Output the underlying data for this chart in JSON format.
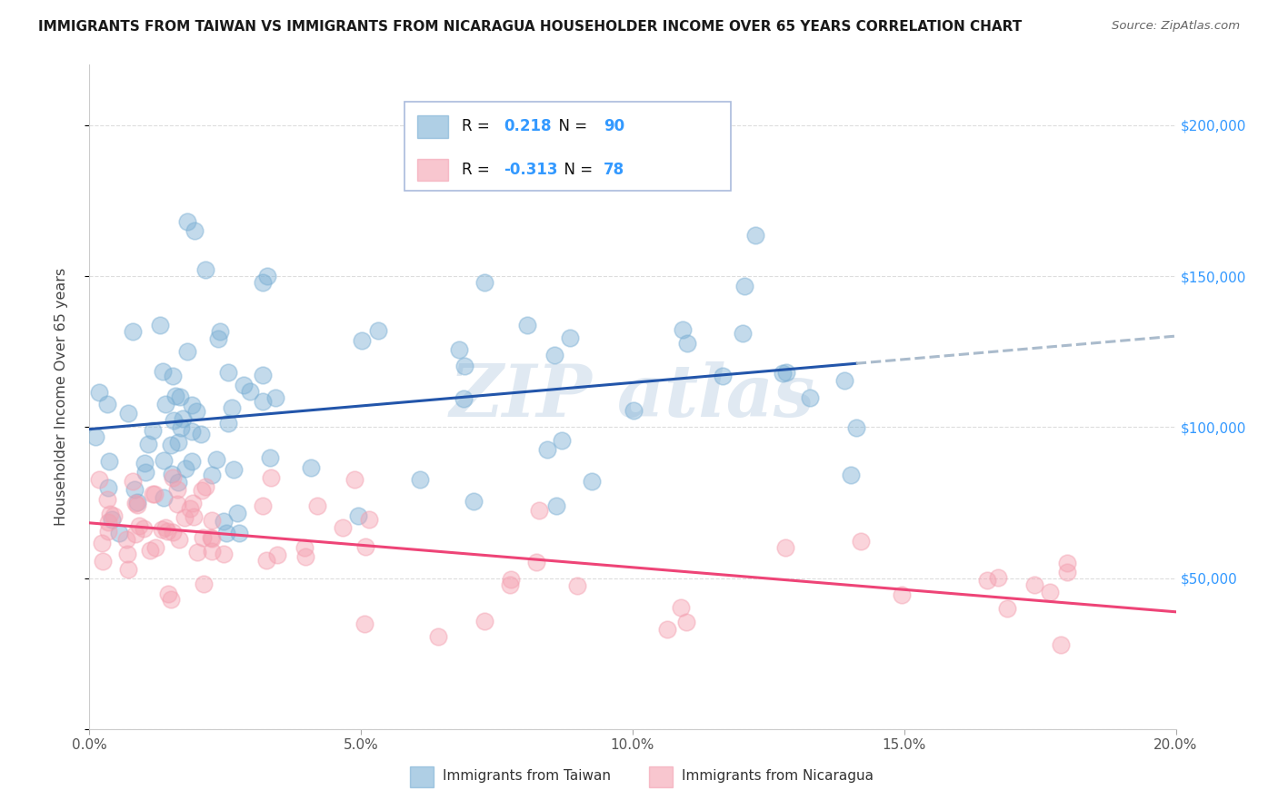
{
  "title": "IMMIGRANTS FROM TAIWAN VS IMMIGRANTS FROM NICARAGUA HOUSEHOLDER INCOME OVER 65 YEARS CORRELATION CHART",
  "source": "Source: ZipAtlas.com",
  "ylabel": "Householder Income Over 65 years",
  "xlim": [
    0.0,
    0.2
  ],
  "ylim": [
    0,
    220000
  ],
  "xticks": [
    0.0,
    0.05,
    0.1,
    0.15,
    0.2
  ],
  "xtick_labels": [
    "0.0%",
    "5.0%",
    "10.0%",
    "15.0%",
    "20.0%"
  ],
  "taiwan_R": 0.218,
  "taiwan_N": 90,
  "nicaragua_R": -0.313,
  "nicaragua_N": 78,
  "taiwan_color": "#7BAFD4",
  "nicaragua_color": "#F4A0B0",
  "taiwan_line_color": "#2255AA",
  "nicaragua_line_color": "#EE4477",
  "taiwan_line_dash_color": "#AABBCC",
  "background_color": "#FFFFFF",
  "grid_color": "#DDDDDD",
  "watermark": "ZIP atlas",
  "legend_taiwan": "Immigrants from Taiwan",
  "legend_nicaragua": "Immigrants from Nicaragua",
  "r_n_color": "#3399FF",
  "label_color": "#333333"
}
